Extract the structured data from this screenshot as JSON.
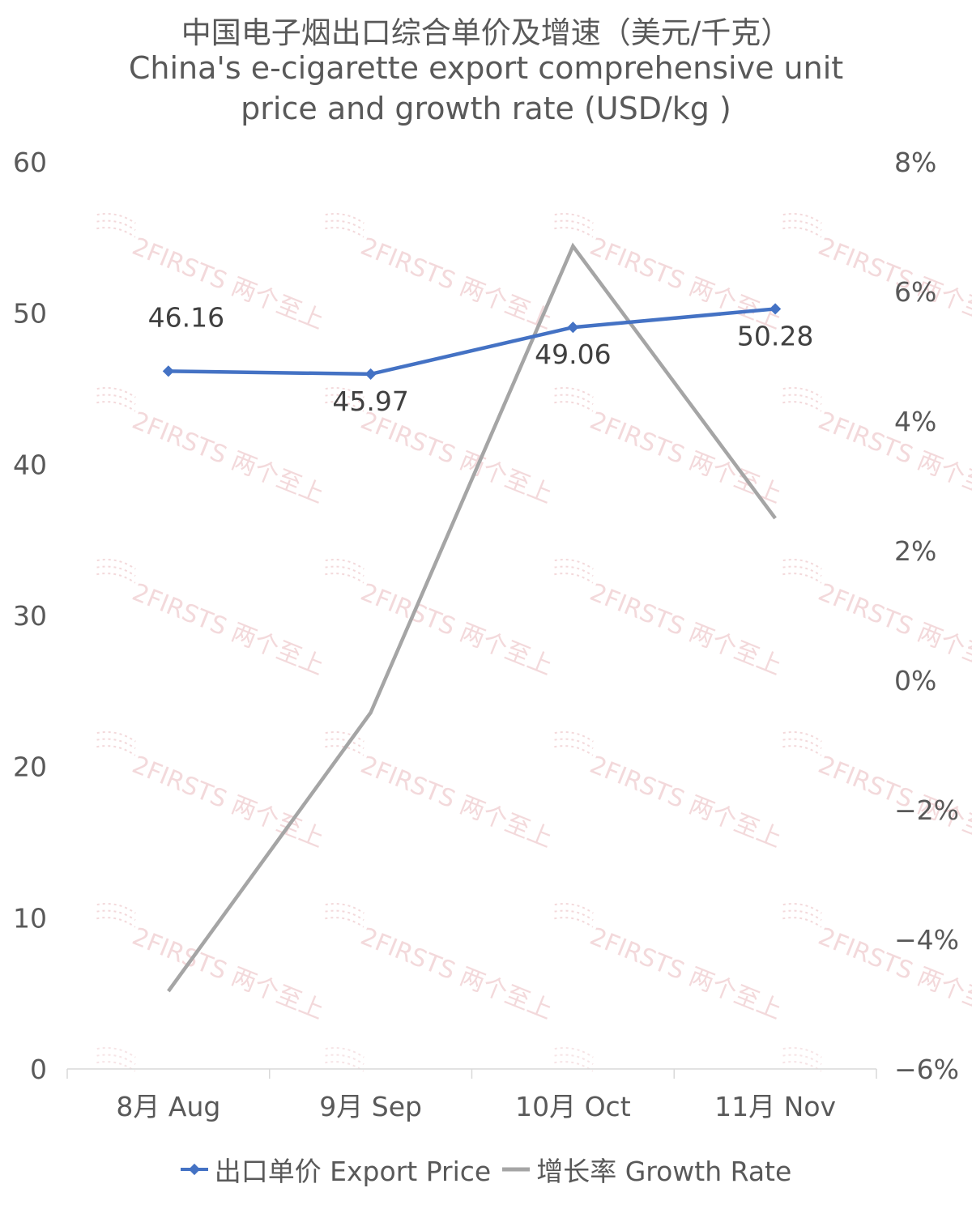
{
  "chart_data": {
    "type": "line",
    "title": "中国电子烟出口综合单价及增速（美元/千克）",
    "subtitle": "China's e-cigarette export comprehensive unit price and growth rate (USD/kg )",
    "categories": [
      "8月 Aug",
      "9月 Sep",
      "10月 Oct",
      "11月 Nov"
    ],
    "series": [
      {
        "name": "出口单价 Export Price",
        "axis": "left",
        "color": "#4472C4",
        "marker": "diamond",
        "values": [
          46.16,
          45.97,
          49.06,
          50.28
        ],
        "labels": [
          "46.16",
          "45.97",
          "49.06",
          "50.28"
        ]
      },
      {
        "name": "增长率 Growth Rate",
        "axis": "right",
        "color": "#A5A5A5",
        "marker": "none",
        "values": [
          -4.8,
          -0.5,
          6.7,
          2.5
        ]
      }
    ],
    "y_left": {
      "min": 0,
      "max": 60,
      "ticks": [
        "0",
        "10",
        "20",
        "30",
        "40",
        "50",
        "60"
      ]
    },
    "y_right": {
      "min": -6,
      "max": 8,
      "ticks": [
        "-6%",
        "-4%",
        "-2%",
        "0%",
        "2%",
        "4%",
        "6%",
        "8%"
      ]
    },
    "grid": false,
    "legend": "bottom",
    "watermark": "2FIRSTS 两个至上"
  }
}
